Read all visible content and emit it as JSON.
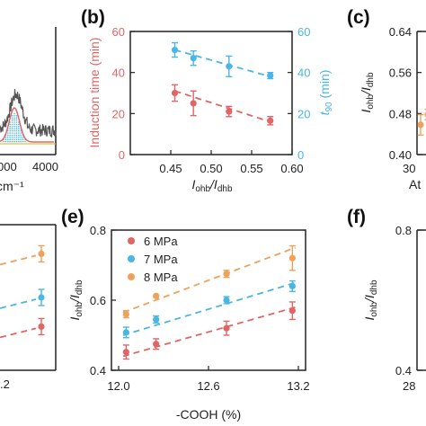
{
  "colors": {
    "red": "#e06666",
    "cyan": "#4ab6e6",
    "orange": "#eea15a",
    "axis": "#222222",
    "spectrum_gray": "#555555"
  },
  "chart_data": [
    {
      "id": "a",
      "type": "area",
      "panel_label": "",
      "xlabel": "cm⁻¹",
      "ylabel": "",
      "xtick_labels": [
        "000",
        "4000"
      ],
      "note": "partially visible spectrum panel"
    },
    {
      "id": "b",
      "type": "scatter",
      "panel_label": "(b)",
      "xlabel_main": "I",
      "xlabel_sub1": "ohb",
      "xlabel_sep": "/I",
      "xlabel_sub2": "dhb",
      "ylabel": "Induction time (min)",
      "y2label_main": "t",
      "y2label_sub": "90",
      "y2label_rest": " (min)",
      "xlim": [
        0.4,
        0.6
      ],
      "ylim": [
        0,
        60
      ],
      "y2lim": [
        0,
        60
      ],
      "xticks": [
        "0.45",
        "0.50",
        "0.55",
        "0.60"
      ],
      "yticks": [
        "0",
        "20",
        "40",
        "60"
      ],
      "y2ticks": [
        "0",
        "20",
        "40",
        "60"
      ],
      "series": [
        {
          "axis": "left",
          "color": "red",
          "points": [
            {
              "x": 0.455,
              "y": 30,
              "err": 4
            },
            {
              "x": 0.478,
              "y": 25,
              "err": 6
            },
            {
              "x": 0.522,
              "y": 21,
              "err": 2.5
            },
            {
              "x": 0.573,
              "y": 16.5,
              "err": 2
            }
          ],
          "fit": [
            [
              0.455,
              31
            ],
            [
              0.573,
              16
            ]
          ]
        },
        {
          "axis": "right",
          "color": "cyan",
          "points": [
            {
              "x": 0.455,
              "y": 51,
              "err": 3.5
            },
            {
              "x": 0.478,
              "y": 47,
              "err": 3.5
            },
            {
              "x": 0.522,
              "y": 43,
              "err": 5
            },
            {
              "x": 0.573,
              "y": 38.5,
              "err": 1.5
            }
          ],
          "fit": [
            [
              0.455,
              51
            ],
            [
              0.573,
              38
            ]
          ]
        }
      ]
    },
    {
      "id": "c",
      "type": "scatter",
      "panel_label": "(c)",
      "ylabel_main": "I",
      "ylabel_sub1": "ohb",
      "ylabel_sep": "/I",
      "ylabel_sub2": "dhb",
      "xlabel": "At",
      "ylim": [
        0.4,
        0.64
      ],
      "yticks": [
        "0.40",
        "0.48",
        "0.56",
        "0.64"
      ],
      "xticks": [
        "30"
      ],
      "series": [
        {
          "color": "orange",
          "points": [
            {
              "x": 30.5,
              "y": 0.458,
              "err": 0.02
            },
            {
              "x": 31.5,
              "y": 0.478,
              "err": 0.01
            }
          ]
        }
      ]
    },
    {
      "id": "d",
      "type": "scatter",
      "panel_label": "",
      "xtick_labels": [
        ".2"
      ],
      "note": "partially visible panel",
      "series": [
        {
          "color": "orange",
          "points": [
            {
              "x": 0.92,
              "y": 0.8
            }
          ]
        },
        {
          "color": "cyan",
          "points": [
            {
              "x": 0.92,
              "y": 0.5
            }
          ]
        },
        {
          "color": "red",
          "points": [
            {
              "x": 0.92,
              "y": 0.3
            }
          ]
        }
      ]
    },
    {
      "id": "e",
      "type": "scatter",
      "panel_label": "(e)",
      "xlabel": "-COOH (%)",
      "ylabel_main": "I",
      "ylabel_sub1": "ohb",
      "ylabel_sep": "/I",
      "ylabel_sub2": "dhb",
      "xlim": [
        12.0,
        13.2
      ],
      "ylim": [
        0.4,
        0.8
      ],
      "xticks": [
        "12.0",
        "12.6",
        "13.2"
      ],
      "yticks": [
        "0.4",
        "0.6",
        "0.8"
      ],
      "legend": [
        "6 MPa",
        "7 MPa",
        "8 MPa"
      ],
      "legend_position": "top-left",
      "series": [
        {
          "name": "6 MPa",
          "color": "red",
          "points": [
            {
              "x": 12.05,
              "y": 0.452,
              "err": 0.02
            },
            {
              "x": 12.25,
              "y": 0.475,
              "err": 0.015
            },
            {
              "x": 12.72,
              "y": 0.52,
              "err": 0.02
            },
            {
              "x": 13.16,
              "y": 0.57,
              "err": 0.025
            }
          ],
          "fit": [
            [
              12.03,
              0.44
            ],
            [
              13.18,
              0.58
            ]
          ]
        },
        {
          "name": "7 MPa",
          "color": "cyan",
          "points": [
            {
              "x": 12.05,
              "y": 0.508,
              "err": 0.015
            },
            {
              "x": 12.25,
              "y": 0.545,
              "err": 0.01
            },
            {
              "x": 12.72,
              "y": 0.6,
              "err": 0.01
            },
            {
              "x": 13.16,
              "y": 0.64,
              "err": 0.015
            }
          ],
          "fit": [
            [
              12.03,
              0.5
            ],
            [
              13.18,
              0.65
            ]
          ]
        },
        {
          "name": "8 MPa",
          "color": "orange",
          "points": [
            {
              "x": 12.05,
              "y": 0.56,
              "err": 0.01
            },
            {
              "x": 12.25,
              "y": 0.612,
              "err": 0.0
            },
            {
              "x": 12.72,
              "y": 0.675,
              "err": 0.01
            },
            {
              "x": 13.16,
              "y": 0.72,
              "err": 0.035
            }
          ],
          "fit": [
            [
              12.03,
              0.565
            ],
            [
              13.18,
              0.75
            ]
          ]
        }
      ]
    },
    {
      "id": "f",
      "type": "scatter",
      "panel_label": "(f)",
      "ylabel_main": "I",
      "ylabel_sub1": "ohb",
      "ylabel_sep": "/I",
      "ylabel_sub2": "dhb",
      "ylim": [
        0.4,
        0.8
      ],
      "yticks": [
        "0.4",
        "0.8"
      ],
      "xticks": [
        "28"
      ]
    }
  ]
}
